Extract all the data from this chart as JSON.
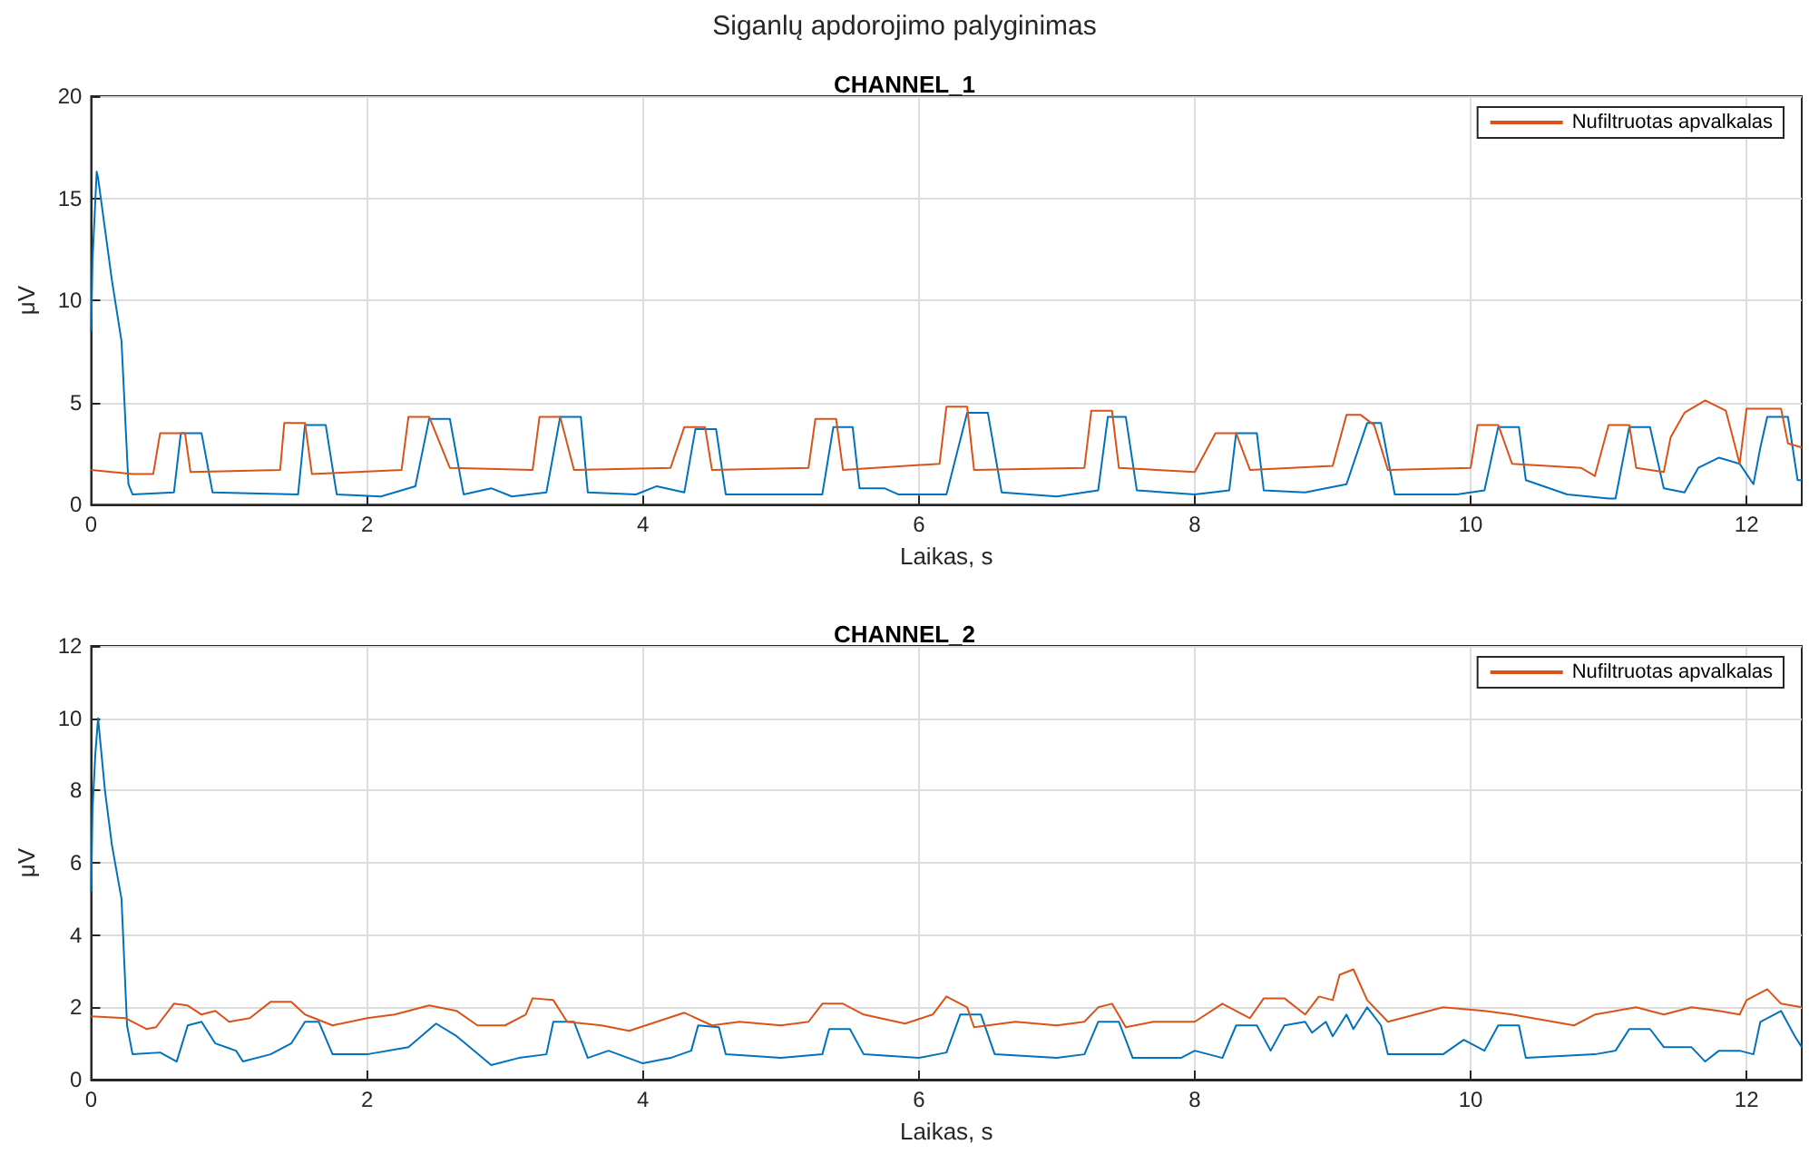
{
  "chart_data": [
    {
      "type": "line",
      "annotations": [
        "Siganlų apdorojimo palyginimas"
      ],
      "title": "CHANNEL_1",
      "xlabel": "Laikas, s",
      "ylabel": "μV",
      "xlim": [
        0,
        12.4
      ],
      "xticks": [
        0,
        2,
        4,
        6,
        8,
        10,
        12
      ],
      "ylim": [
        0,
        20
      ],
      "yticks": [
        0,
        5,
        10,
        15,
        20
      ],
      "grid": true,
      "legend": "top right",
      "series": [
        {
          "color": "#0072bd",
          "x": [
            0,
            0.01,
            0.04,
            0.05,
            0.15,
            0.22,
            0.27,
            0.3,
            0.6,
            0.65,
            0.8,
            0.88,
            1.5,
            1.55,
            1.7,
            1.78,
            2.1,
            2.35,
            2.45,
            2.6,
            2.7,
            2.9,
            3.05,
            3.3,
            3.4,
            3.55,
            3.6,
            3.95,
            4.1,
            4.3,
            4.38,
            4.53,
            4.6,
            5.3,
            5.38,
            5.52,
            5.57,
            5.75,
            5.85,
            6.2,
            6.35,
            6.5,
            6.6,
            7.0,
            7.3,
            7.37,
            7.5,
            7.58,
            8.0,
            8.25,
            8.3,
            8.45,
            8.5,
            8.8,
            9.1,
            9.25,
            9.35,
            9.45,
            9.9,
            10.1,
            10.2,
            10.35,
            10.4,
            10.7,
            11.0,
            11.05,
            11.15,
            11.3,
            11.4,
            11.55,
            11.65,
            11.8,
            11.95,
            12.05,
            12.1,
            12.15,
            12.3,
            12.37,
            12.4
          ],
          "values": [
            8.5,
            12,
            16.3,
            16,
            11,
            8,
            1,
            0.5,
            0.6,
            3.5,
            3.5,
            0.6,
            0.5,
            3.9,
            3.9,
            0.5,
            0.4,
            0.9,
            4.2,
            4.2,
            0.5,
            0.8,
            0.4,
            0.6,
            4.3,
            4.3,
            0.6,
            0.5,
            0.9,
            0.6,
            3.7,
            3.7,
            0.5,
            0.5,
            3.8,
            3.8,
            0.8,
            0.8,
            0.5,
            0.5,
            4.5,
            4.5,
            0.6,
            0.4,
            0.7,
            4.3,
            4.3,
            0.7,
            0.5,
            0.7,
            3.5,
            3.5,
            0.7,
            0.6,
            1.0,
            4.0,
            4.0,
            0.5,
            0.5,
            0.7,
            3.8,
            3.8,
            1.2,
            0.5,
            0.3,
            0.3,
            3.8,
            3.8,
            0.8,
            0.6,
            1.8,
            2.3,
            2.0,
            1.0,
            2.8,
            4.3,
            4.3,
            1.2,
            1.2
          ]
        },
        {
          "name": "Nufiltruotas apvalkalas",
          "color": "#d95319",
          "x": [
            0,
            0.3,
            0.45,
            0.5,
            0.68,
            0.72,
            1.37,
            1.4,
            1.55,
            1.6,
            2.25,
            2.3,
            2.45,
            2.6,
            3.2,
            3.25,
            3.4,
            3.5,
            4.2,
            4.3,
            4.45,
            4.5,
            5.2,
            5.25,
            5.4,
            5.45,
            6.15,
            6.2,
            6.35,
            6.4,
            7.2,
            7.25,
            7.4,
            7.45,
            8.0,
            8.15,
            8.3,
            8.4,
            9.0,
            9.1,
            9.2,
            9.3,
            9.4,
            10.0,
            10.05,
            10.2,
            10.3,
            10.8,
            10.9,
            11.0,
            11.15,
            11.2,
            11.4,
            11.45,
            11.55,
            11.7,
            11.85,
            11.95,
            12.0,
            12.25,
            12.3,
            12.4
          ],
          "values": [
            1.7,
            1.5,
            1.5,
            3.5,
            3.5,
            1.6,
            1.7,
            4.0,
            4.0,
            1.5,
            1.7,
            4.3,
            4.3,
            1.8,
            1.7,
            4.3,
            4.3,
            1.7,
            1.8,
            3.8,
            3.8,
            1.7,
            1.8,
            4.2,
            4.2,
            1.7,
            2.0,
            4.8,
            4.8,
            1.7,
            1.8,
            4.6,
            4.6,
            1.8,
            1.6,
            3.5,
            3.5,
            1.7,
            1.9,
            4.4,
            4.4,
            3.9,
            1.7,
            1.8,
            3.9,
            3.9,
            2.0,
            1.8,
            1.4,
            3.9,
            3.9,
            1.8,
            1.6,
            3.3,
            4.5,
            5.1,
            4.6,
            2.0,
            4.7,
            4.7,
            3.0,
            2.8
          ]
        }
      ]
    },
    {
      "type": "line",
      "title": "CHANNEL_2",
      "xlabel": "Laikas, s",
      "ylabel": "μV",
      "xlim": [
        0,
        12.4
      ],
      "xticks": [
        0,
        2,
        4,
        6,
        8,
        10,
        12
      ],
      "ylim": [
        0,
        12
      ],
      "yticks": [
        0,
        2,
        4,
        6,
        8,
        10,
        12
      ],
      "grid": true,
      "legend": "top right",
      "series": [
        {
          "color": "#0072bd",
          "x": [
            0,
            0.01,
            0.03,
            0.05,
            0.1,
            0.15,
            0.22,
            0.26,
            0.3,
            0.5,
            0.62,
            0.7,
            0.8,
            0.9,
            1.05,
            1.1,
            1.3,
            1.45,
            1.55,
            1.65,
            1.75,
            2.0,
            2.3,
            2.5,
            2.65,
            2.9,
            3.1,
            3.3,
            3.35,
            3.5,
            3.6,
            3.75,
            4.0,
            4.2,
            4.35,
            4.4,
            4.55,
            4.6,
            5.0,
            5.3,
            5.35,
            5.5,
            5.6,
            6.0,
            6.2,
            6.3,
            6.45,
            6.55,
            7.0,
            7.2,
            7.3,
            7.45,
            7.55,
            7.9,
            8.0,
            8.2,
            8.3,
            8.45,
            8.55,
            8.65,
            8.8,
            8.85,
            8.95,
            9.0,
            9.1,
            9.15,
            9.25,
            9.35,
            9.4,
            9.8,
            9.95,
            10.1,
            10.2,
            10.35,
            10.4,
            10.9,
            11.05,
            11.15,
            11.3,
            11.4,
            11.6,
            11.7,
            11.8,
            11.95,
            12.05,
            12.1,
            12.25,
            12.35,
            12.4
          ],
          "values": [
            5.2,
            7.5,
            9.0,
            10,
            8,
            6.5,
            5,
            1.5,
            0.7,
            0.75,
            0.5,
            1.5,
            1.6,
            1.0,
            0.8,
            0.5,
            0.7,
            1.0,
            1.6,
            1.6,
            0.7,
            0.7,
            0.9,
            1.55,
            1.2,
            0.4,
            0.6,
            0.7,
            1.6,
            1.6,
            0.6,
            0.8,
            0.45,
            0.6,
            0.8,
            1.5,
            1.45,
            0.7,
            0.6,
            0.7,
            1.4,
            1.4,
            0.7,
            0.6,
            0.75,
            1.8,
            1.8,
            0.7,
            0.6,
            0.7,
            1.6,
            1.6,
            0.6,
            0.6,
            0.8,
            0.6,
            1.5,
            1.5,
            0.8,
            1.5,
            1.6,
            1.3,
            1.6,
            1.2,
            1.8,
            1.4,
            2.0,
            1.5,
            0.7,
            0.7,
            1.1,
            0.8,
            1.5,
            1.5,
            0.6,
            0.7,
            0.8,
            1.4,
            1.4,
            0.9,
            0.9,
            0.5,
            0.8,
            0.8,
            0.7,
            1.6,
            1.9,
            1.2,
            0.9
          ]
        },
        {
          "name": "Nufiltruotas apvalkalas",
          "color": "#d95319",
          "x": [
            0,
            0.25,
            0.4,
            0.47,
            0.6,
            0.7,
            0.8,
            0.9,
            1.0,
            1.15,
            1.3,
            1.45,
            1.55,
            1.75,
            2.0,
            2.2,
            2.45,
            2.65,
            2.8,
            3.0,
            3.15,
            3.2,
            3.35,
            3.45,
            3.7,
            3.9,
            4.1,
            4.3,
            4.5,
            4.7,
            5.0,
            5.2,
            5.3,
            5.45,
            5.6,
            5.9,
            6.1,
            6.2,
            6.35,
            6.4,
            6.7,
            7.0,
            7.2,
            7.3,
            7.4,
            7.5,
            7.7,
            8.0,
            8.2,
            8.35,
            8.4,
            8.5,
            8.65,
            8.8,
            8.9,
            9.0,
            9.05,
            9.15,
            9.25,
            9.4,
            9.6,
            9.8,
            10.1,
            10.3,
            10.6,
            10.75,
            10.9,
            11.2,
            11.4,
            11.6,
            11.8,
            11.95,
            12.0,
            12.15,
            12.25,
            12.4
          ],
          "values": [
            1.75,
            1.7,
            1.4,
            1.45,
            2.1,
            2.05,
            1.8,
            1.9,
            1.6,
            1.7,
            2.15,
            2.15,
            1.8,
            1.5,
            1.7,
            1.8,
            2.05,
            1.9,
            1.5,
            1.5,
            1.8,
            2.25,
            2.2,
            1.6,
            1.5,
            1.35,
            1.6,
            1.85,
            1.5,
            1.6,
            1.5,
            1.6,
            2.1,
            2.1,
            1.8,
            1.55,
            1.8,
            2.3,
            2.0,
            1.45,
            1.6,
            1.5,
            1.6,
            2.0,
            2.1,
            1.45,
            1.6,
            1.6,
            2.1,
            1.8,
            1.7,
            2.25,
            2.25,
            1.8,
            2.3,
            2.2,
            2.9,
            3.05,
            2.2,
            1.6,
            1.8,
            2.0,
            1.9,
            1.8,
            1.6,
            1.5,
            1.8,
            2.0,
            1.8,
            2.0,
            1.9,
            1.8,
            2.2,
            2.5,
            2.1,
            2.0
          ]
        }
      ]
    }
  ]
}
